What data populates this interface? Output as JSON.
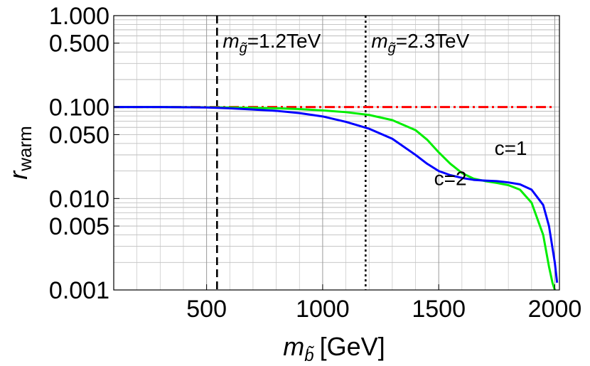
{
  "chart_data": {
    "type": "line",
    "xlabel": {
      "var": "m",
      "sub": "b̃",
      "unit": "[GeV]"
    },
    "ylabel": {
      "var": "r",
      "sub": "warm"
    },
    "xlim": [
      100,
      2020
    ],
    "ylim": [
      0.001,
      1.0
    ],
    "yscale": "log",
    "x_ticks": [
      500,
      1000,
      1500,
      2000
    ],
    "x_tick_labels": [
      "500",
      "1000",
      "1500",
      "2000"
    ],
    "y_ticks": [
      0.001,
      0.005,
      0.01,
      0.05,
      0.1,
      0.5,
      1.0
    ],
    "y_tick_labels": [
      "0.001",
      "0.005",
      "0.010",
      "0.050",
      "0.100",
      "0.500",
      "1.000"
    ],
    "grid": true,
    "vlines": [
      {
        "x": 545,
        "style": "dashed",
        "label_var": "m",
        "label_sub": "g̃",
        "label_text": "=1.2TeV"
      },
      {
        "x": 1185,
        "style": "dotted",
        "label_var": "m",
        "label_sub": "g̃",
        "label_text": "=2.3TeV"
      }
    ],
    "series": [
      {
        "name": "",
        "color": "#ff0000",
        "style": "dashdot",
        "x": [
          100,
          2000
        ],
        "y": [
          0.1,
          0.1
        ]
      },
      {
        "name": "c=1",
        "color": "#00ee00",
        "style": "solid",
        "x": [
          100,
          300,
          500,
          600,
          700,
          800,
          900,
          1000,
          1100,
          1200,
          1300,
          1400,
          1450,
          1500,
          1550,
          1600,
          1650,
          1700,
          1750,
          1800,
          1850,
          1900,
          1950,
          1975,
          1990,
          2000
        ],
        "y": [
          0.1,
          0.1,
          0.0995,
          0.099,
          0.098,
          0.097,
          0.095,
          0.092,
          0.088,
          0.082,
          0.072,
          0.056,
          0.044,
          0.032,
          0.024,
          0.019,
          0.0165,
          0.0155,
          0.0148,
          0.014,
          0.0125,
          0.009,
          0.004,
          0.0018,
          0.0012,
          0.001
        ]
      },
      {
        "name": "c=2",
        "color": "#0000ff",
        "style": "solid",
        "x": [
          100,
          300,
          500,
          600,
          700,
          800,
          900,
          1000,
          1100,
          1200,
          1300,
          1400,
          1450,
          1500,
          1550,
          1600,
          1650,
          1700,
          1750,
          1800,
          1850,
          1900,
          1950,
          1975,
          2000,
          2010
        ],
        "y": [
          0.1,
          0.1,
          0.099,
          0.097,
          0.094,
          0.091,
          0.086,
          0.079,
          0.069,
          0.058,
          0.045,
          0.03,
          0.024,
          0.02,
          0.018,
          0.0168,
          0.016,
          0.0157,
          0.0155,
          0.015,
          0.0143,
          0.0125,
          0.0085,
          0.005,
          0.002,
          0.0012
        ]
      }
    ],
    "series_labels": [
      {
        "text": "c=1",
        "x": 1740,
        "y": 0.03
      },
      {
        "text": "c=2",
        "x": 1480,
        "y": 0.014
      }
    ]
  }
}
